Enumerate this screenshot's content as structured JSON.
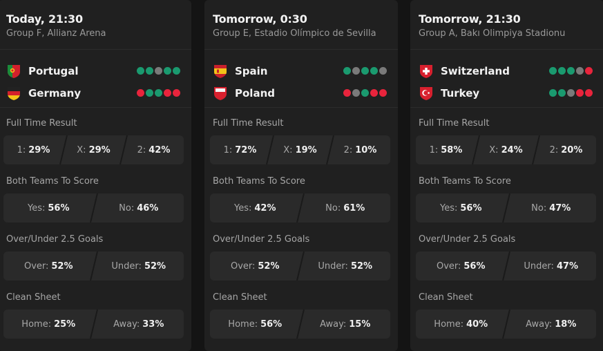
{
  "cards": [
    {
      "time": "Today, 21:30",
      "venue": "Group F, Allianz Arena",
      "teams": [
        {
          "name": "Portugal",
          "flag": "portugal-flag-icon",
          "form": [
            "#1a9a6f",
            "#1a9a6f",
            "#7a7a7a",
            "#1a9a6f",
            "#1a9a6f"
          ]
        },
        {
          "name": "Germany",
          "flag": "germany-flag-icon",
          "form": [
            "#e8243c",
            "#1a9a6f",
            "#1a9a6f",
            "#e8243c",
            "#e8243c"
          ]
        }
      ],
      "markets": [
        {
          "title": "Full Time Result",
          "options": [
            {
              "label": "1:",
              "value": "29%"
            },
            {
              "label": "X:",
              "value": "29%"
            },
            {
              "label": "2:",
              "value": "42%"
            }
          ]
        },
        {
          "title": "Both Teams To Score",
          "options": [
            {
              "label": "Yes:",
              "value": "56%"
            },
            {
              "label": "No:",
              "value": "46%"
            }
          ]
        },
        {
          "title": "Over/Under 2.5 Goals",
          "options": [
            {
              "label": "Over:",
              "value": "52%"
            },
            {
              "label": "Under:",
              "value": "52%"
            }
          ]
        },
        {
          "title": "Clean Sheet",
          "options": [
            {
              "label": "Home:",
              "value": "25%"
            },
            {
              "label": "Away:",
              "value": "33%"
            }
          ]
        }
      ]
    },
    {
      "time": "Tomorrow, 0:30",
      "venue": "Group E, Estadio Olímpico de Sevilla",
      "teams": [
        {
          "name": "Spain",
          "flag": "spain-flag-icon",
          "form": [
            "#1a9a6f",
            "#7a7a7a",
            "#1a9a6f",
            "#1a9a6f",
            "#7a7a7a"
          ]
        },
        {
          "name": "Poland",
          "flag": "poland-flag-icon",
          "form": [
            "#e8243c",
            "#7a7a7a",
            "#1a9a6f",
            "#e8243c",
            "#e8243c"
          ]
        }
      ],
      "markets": [
        {
          "title": "Full Time Result",
          "options": [
            {
              "label": "1:",
              "value": "72%"
            },
            {
              "label": "X:",
              "value": "19%"
            },
            {
              "label": "2:",
              "value": "10%"
            }
          ]
        },
        {
          "title": "Both Teams To Score",
          "options": [
            {
              "label": "Yes:",
              "value": "42%"
            },
            {
              "label": "No:",
              "value": "61%"
            }
          ]
        },
        {
          "title": "Over/Under 2.5 Goals",
          "options": [
            {
              "label": "Over:",
              "value": "52%"
            },
            {
              "label": "Under:",
              "value": "52%"
            }
          ]
        },
        {
          "title": "Clean Sheet",
          "options": [
            {
              "label": "Home:",
              "value": "56%"
            },
            {
              "label": "Away:",
              "value": "15%"
            }
          ]
        }
      ]
    },
    {
      "time": "Tomorrow, 21:30",
      "venue": "Group A, Bakı Olimpiya Stadionu",
      "teams": [
        {
          "name": "Switzerland",
          "flag": "switzerland-flag-icon",
          "form": [
            "#1a9a6f",
            "#1a9a6f",
            "#1a9a6f",
            "#7a7a7a",
            "#e8243c"
          ]
        },
        {
          "name": "Turkey",
          "flag": "turkey-flag-icon",
          "form": [
            "#1a9a6f",
            "#1a9a6f",
            "#7a7a7a",
            "#e8243c",
            "#e8243c"
          ]
        }
      ],
      "markets": [
        {
          "title": "Full Time Result",
          "options": [
            {
              "label": "1:",
              "value": "58%"
            },
            {
              "label": "X:",
              "value": "24%"
            },
            {
              "label": "2:",
              "value": "20%"
            }
          ]
        },
        {
          "title": "Both Teams To Score",
          "options": [
            {
              "label": "Yes:",
              "value": "56%"
            },
            {
              "label": "No:",
              "value": "47%"
            }
          ]
        },
        {
          "title": "Over/Under 2.5 Goals",
          "options": [
            {
              "label": "Over:",
              "value": "56%"
            },
            {
              "label": "Under:",
              "value": "47%"
            }
          ]
        },
        {
          "title": "Clean Sheet",
          "options": [
            {
              "label": "Home:",
              "value": "40%"
            },
            {
              "label": "Away:",
              "value": "18%"
            }
          ]
        }
      ]
    }
  ]
}
